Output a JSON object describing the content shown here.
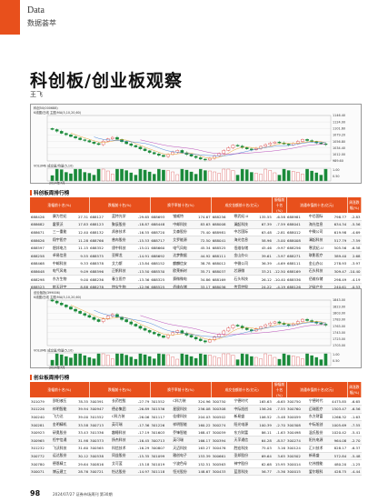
{
  "header": {
    "en": "Data",
    "zh": "数据荟萃"
  },
  "article": {
    "title": "科创板/创业板观察",
    "author": "王飞"
  },
  "chart1": {
    "title": "科创50(000688)",
    "subtitle": "K线图/日线 主图:MA(5,10,20,60)",
    "price_ticks": [
      "1146.40",
      "1124.00",
      "1101.60",
      "1079.20",
      "1056.80",
      "1034.40",
      "1012.00",
      "989.60"
    ],
    "vol_label": "VOLUME 成交量/均量(5,10)",
    "vol_ticks": [
      "1.00",
      "0.50"
    ],
    "date_label": "2024年7月",
    "closes": [
      1098,
      1092,
      1085,
      1080,
      1074,
      1069,
      1063,
      1060,
      1055,
      1050,
      1046,
      1058,
      1066,
      1071,
      1064,
      1056,
      1049,
      1043,
      1038,
      1031,
      1025,
      1019,
      1014,
      1009,
      1005,
      1012,
      1020,
      1026,
      1018,
      1012,
      1006,
      1001,
      996,
      993,
      999,
      1007,
      1016,
      1026,
      1035,
      1044,
      1041,
      1036,
      1031,
      1028,
      1033,
      1040,
      1046,
      1051,
      1055,
      1052,
      1048,
      1045,
      1050,
      1057,
      1064,
      1060,
      1056,
      1052,
      1049,
      1046
    ]
  },
  "table1": {
    "title": "科创板周排行榜",
    "headers": [
      "涨幅前十名(%)",
      "跌幅前十名(%)",
      "换手率前十名(%)",
      "成交金额前十名(亿元)",
      "振幅前十名(%)",
      "流通市值前十名(亿元)",
      "周涨跌幅(%)"
    ],
    "rows": [
      [
        "688426",
        "康为世纪",
        "27.31",
        "688127",
        "蓝特光学",
        "-29.65",
        "688693",
        "锴威特",
        "174.67",
        "688256",
        "寒武纪-U",
        "135.55",
        "-6.58",
        "688981",
        "中芯国际",
        "798.77",
        "-2.83"
      ],
      [
        "688682",
        "霍莱沃",
        "17.83",
        "688123",
        "聚辰股份",
        "-18.87",
        "688448",
        "中邮科技",
        "83.63",
        "688008",
        "澜起科技",
        "67.39",
        "-7.59",
        "688041",
        "海光信息",
        "634.34",
        "-5.56"
      ],
      [
        "688671",
        "三一重能",
        "12.40",
        "688132",
        "邦彦技术",
        "-16.55",
        "688720",
        "艾森股份",
        "75.40",
        "688981",
        "中芯国际",
        "63.48",
        "-2.81",
        "688012",
        "中微公司",
        "619.98",
        "-4.69"
      ],
      [
        "688626",
        "翔宇医疗",
        "11.28",
        "688766",
        "普冉股份",
        "-15.53",
        "688717",
        "艾罗能源",
        "72.50",
        "688041",
        "海光信息",
        "58.96",
        "-5.00",
        "688008",
        "澜起科技",
        "517.79",
        "-7.59"
      ],
      [
        "688597",
        "煜邦电力",
        "11.15",
        "688352",
        "颀中科技",
        "-15.01",
        "688660",
        "电气风电",
        "45.34",
        "688525",
        "佰维存储",
        "45.46",
        "-9.97",
        "688256",
        "寒武纪-U",
        "505.56",
        "-6.58"
      ],
      [
        "688258",
        "卓易信息",
        "9.55",
        "688575",
        "亚辉龙",
        "-14.91",
        "688692",
        "达梦数据",
        "44.92",
        "688111",
        "金山办公",
        "39.61",
        "-3.97",
        "688271",
        "联影医疗",
        "389.40",
        "2.68"
      ],
      [
        "688468",
        "中邮科技",
        "9.33",
        "688578",
        "艾力斯",
        "-13.84",
        "688152",
        "麒麟信安",
        "38.78",
        "688012",
        "中微公司",
        "36.39",
        "-4.69",
        "688111",
        "金山办公",
        "278.93",
        "-3.97"
      ],
      [
        "688648",
        "电气风电",
        "9.09",
        "688596",
        "正帆科技",
        "-13.50",
        "688530",
        "欧莱新材",
        "35.71",
        "688037",
        "芯源微",
        "33.21",
        "-12.50",
        "688169",
        "石头科技",
        "309.47",
        "-10.40"
      ],
      [
        "688298",
        "东方生物",
        "9.00",
        "688236",
        "春立医疗",
        "-13.36",
        "688325",
        "赛微微电",
        "34.86",
        "688169",
        "石头科技",
        "26.12",
        "-10.40",
        "688536",
        "佰维存储",
        "298.49",
        "-4.19"
      ],
      [
        "688523",
        "航天环宇",
        "8.88",
        "688278",
        "特宝生物",
        "-12.96",
        "688525",
        "佰维存储",
        "33.17",
        "688036",
        "传音控股",
        "24.22",
        "-4.19",
        "688126",
        "沪硅产业",
        "240.61",
        "-0.53"
      ]
    ]
  },
  "chart2": {
    "title": "创业板指(399006)",
    "subtitle": "K线图/日线 主图:MA(5,10,20,60)",
    "price_ticks": [
      "1843.00",
      "1823.00",
      "1803.00",
      "1783.00",
      "1763.00",
      "1743.00",
      "1723.00",
      "1703.00"
    ],
    "vol_label": "VOLUME 成交量/均量(5,10)",
    "vol_ticks": [
      "1.00",
      "0.50"
    ],
    "date_label": "2024年7月",
    "closes": [
      1840,
      1834,
      1828,
      1822,
      1815,
      1809,
      1802,
      1796,
      1790,
      1783,
      1777,
      1785,
      1794,
      1799,
      1791,
      1783,
      1776,
      1769,
      1763,
      1756,
      1750,
      1744,
      1739,
      1733,
      1728,
      1736,
      1743,
      1749,
      1741,
      1735,
      1729,
      1723,
      1718,
      1714,
      1721,
      1729,
      1738,
      1748,
      1757,
      1766,
      1763,
      1757,
      1752,
      1748,
      1754,
      1761,
      1767,
      1772,
      1776,
      1772,
      1768,
      1765,
      1770,
      1777,
      1784,
      1780,
      1776,
      1772,
      1769,
      1766
    ]
  },
  "table2": {
    "title": "创业板周排行榜",
    "headers": [
      "涨幅前十名(%)",
      "跌幅前十名(%)",
      "换手率前十名(%)",
      "成交金额前十名(亿元)",
      "振幅前十名(%)",
      "流通市值前十名(亿元)",
      "周涨跌幅(%)"
    ],
    "rows": [
      [
        "301079",
        "邵阳液压",
        "78.35",
        "300391",
        "长药控股",
        "-27.79",
        "301552",
        "C科力装",
        "324.96",
        "300750",
        "宁德时代",
        "165.63",
        "-6.65",
        "300750",
        "宁德时代",
        "4475.85",
        "-6.65"
      ],
      [
        "301226",
        "祥明智能",
        "39.94",
        "300947",
        "德必集团",
        "-26.89",
        "301536",
        "星宸科技",
        "256.08",
        "300308",
        "中际旭创",
        "156.26",
        "-7.55",
        "300760",
        "迈瑞医疗",
        "1503.47",
        "-6.56"
      ],
      [
        "300240",
        "飞力达",
        "39.00",
        "301552",
        "C科力装",
        "-26.06",
        "301117",
        "佳缘科技",
        "204.03",
        "300502",
        "新易盛",
        "106.52",
        "-5.48",
        "300059",
        "东方财富",
        "1266.32",
        "-1.63"
      ],
      [
        "300281",
        "金明精机",
        "33.58",
        "300713",
        "英可瑞",
        "-17.36",
        "301226",
        "祥明智能",
        "160.22",
        "300274",
        "阳光电源",
        "100.39",
        "-2.70",
        "300308",
        "中际旭创",
        "1005.69",
        "-7.55"
      ],
      [
        "300923",
        "研奥股份",
        "33.43",
        "301336",
        "趣睡科技",
        "-17.19",
        "301603",
        "乔锋智能",
        "168.47",
        "300059",
        "东方财富",
        "86.11",
        "-1.63",
        "300498",
        "温氏股份",
        "1020.42",
        "-5.41"
      ],
      [
        "300965",
        "恒宇信通",
        "31.98",
        "300373",
        "扬杰科技",
        "-16.45",
        "300713",
        "英可瑞",
        "166.17",
        "300394",
        "天孚通信",
        "64.28",
        "-8.57",
        "300274",
        "阳光电源",
        "964.08",
        "-2.70"
      ],
      [
        "301232",
        "飞沃科技",
        "31.60",
        "300565",
        "科信技术",
        "-16.29",
        "300807",
        "天迈科技",
        "163.27",
        "300476",
        "胜宏科技",
        "75.03",
        "3.16",
        "300124",
        "汇川技术",
        "828.17",
        "-6.37"
      ],
      [
        "300772",
        "运达股份",
        "30.12",
        "300538",
        "同益股份",
        "-15.35",
        "301099",
        "雅创电子",
        "153.39",
        "300661",
        "圣邦股份",
        "69.64",
        "3.65",
        "300502",
        "新易盛",
        "572.84",
        "-5.48"
      ],
      [
        "300780",
        "德恩精工",
        "29.64",
        "300816",
        "艾可蓝",
        "-15.18",
        "301019",
        "宁波色母",
        "152.51",
        "300563",
        "神宇股份",
        "62.68",
        "15.95",
        "300014",
        "亿纬锂能",
        "480.20",
        "-1.25"
      ],
      [
        "300071",
        "博云建工",
        "28.76",
        "300721",
        "怡达股份",
        "-14.97",
        "301118",
        "恒光股份",
        "148.67",
        "300433",
        "蓝思科技",
        "56.77",
        "-5.36",
        "300015",
        "爱尔眼科",
        "428.75",
        "-4.44"
      ]
    ]
  },
  "footer": {
    "page": "98",
    "info": "2024/07/27 证券市场周刊 第30期"
  },
  "colors": {
    "accent": "#e8501c",
    "up": "#d42a2a",
    "down": "#1a8a3a"
  }
}
